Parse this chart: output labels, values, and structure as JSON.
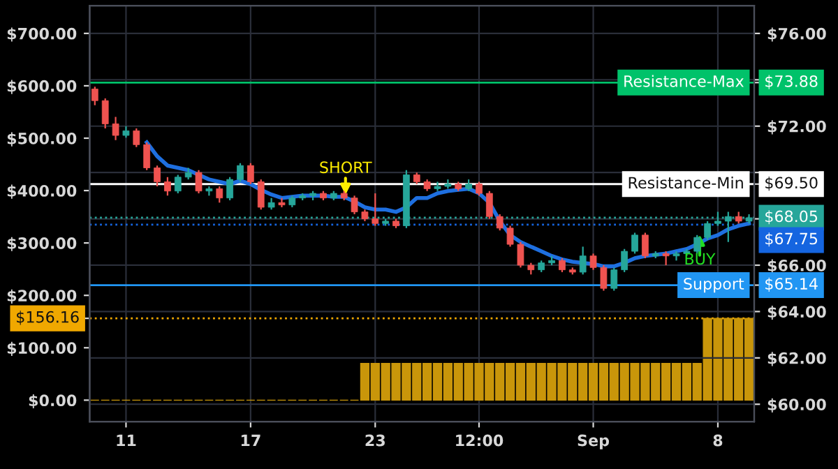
{
  "chart_data": {
    "type": "candlestick",
    "categories": [
      null,
      null,
      null,
      "11",
      null,
      null,
      null,
      null,
      null,
      null,
      null,
      null,
      null,
      null,
      null,
      "17",
      null,
      null,
      null,
      null,
      null,
      null,
      null,
      null,
      null,
      null,
      null,
      "23",
      null,
      null,
      null,
      null,
      null,
      null,
      null,
      null,
      null,
      "12:00",
      null,
      null,
      null,
      null,
      null,
      null,
      null,
      null,
      null,
      null,
      "Sep",
      null,
      null,
      null,
      null,
      null,
      null,
      null,
      null,
      null,
      null,
      null,
      "8",
      null,
      null,
      null
    ],
    "ylim": [
      -41,
      753
    ],
    "yticks": [
      {
        "value": 0,
        "label": "$0.00"
      },
      {
        "value": 100,
        "label": "$100.00"
      },
      {
        "value": 156.16,
        "label": "$156.16"
      },
      {
        "value": 200,
        "label": "$200.00"
      },
      {
        "value": 300,
        "label": "$300.00"
      },
      {
        "value": 400,
        "label": "$400.00"
      },
      {
        "value": 500,
        "label": "$500.00"
      },
      {
        "value": 600,
        "label": "$600.00"
      },
      {
        "value": 700,
        "label": "$700.00"
      }
    ],
    "y2lim": [
      59.25,
      77.2
    ],
    "y2ticks": [
      {
        "value": 60,
        "label": "$60.00"
      },
      {
        "value": 62,
        "label": "$62.00"
      },
      {
        "value": 64,
        "label": "$64.00"
      },
      {
        "value": 65.14,
        "label": "$65.14"
      },
      {
        "value": 66,
        "label": "$66.00"
      },
      {
        "value": 68,
        "label": null
      },
      {
        "value": 69.5,
        "label": "$69.50"
      },
      {
        "value": 70,
        "label": null
      },
      {
        "value": 72,
        "label": "$72.00"
      },
      {
        "value": 73.88,
        "label": "$73.88"
      },
      {
        "value": 74,
        "label": null
      },
      {
        "value": 76,
        "label": "$76.00"
      }
    ],
    "grid": true,
    "ref_lines": [
      {
        "axis": "y2",
        "value": 73.88,
        "label": "Resistance-Max",
        "color": "#00c26a",
        "line_style": "solid"
      },
      {
        "axis": "y2",
        "value": 69.5,
        "label": "Resistance-Min",
        "color": "#ffffff",
        "line_style": "solid"
      },
      {
        "axis": "y2",
        "value": 68.05,
        "label": "$68.05",
        "color": "#26a69a",
        "line_style": "dotted"
      },
      {
        "axis": "y2",
        "value": 67.75,
        "label": "$67.75",
        "color": "#1565e0",
        "line_style": "dotted"
      },
      {
        "axis": "y2",
        "value": 65.14,
        "label": "Support",
        "color": "#2196f3",
        "line_style": "solid"
      },
      {
        "axis": "y",
        "value": 156.16,
        "label": null,
        "color": "#f0a800",
        "line_style": "dotted"
      }
    ],
    "annotations": [
      "SHORT",
      "BUY"
    ],
    "series": [
      {
        "type": "bar",
        "axis": "y",
        "color": "#c9960a",
        "values": [
          0,
          0,
          0,
          0,
          0,
          0,
          0,
          0,
          0,
          0,
          0,
          0,
          0,
          0,
          0,
          0,
          0,
          0,
          0,
          0,
          0,
          0,
          0,
          0,
          0,
          0,
          70,
          70,
          70,
          70,
          70,
          70,
          70,
          70,
          70,
          70,
          70,
          70,
          70,
          70,
          70,
          70,
          70,
          70,
          70,
          70,
          70,
          70,
          70,
          70,
          70,
          70,
          70,
          70,
          70,
          70,
          70,
          70,
          70,
          156.16,
          156.16,
          156.16,
          156.16,
          156.16
        ]
      },
      {
        "type": "line",
        "axis": "y2",
        "color": "#1e6fe0",
        "values": [
          null,
          null,
          null,
          null,
          null,
          71.3,
          70.7,
          70.3,
          70.2,
          70.1,
          69.9,
          69.7,
          69.6,
          69.5,
          69.65,
          69.5,
          69.25,
          69.05,
          68.9,
          68.95,
          69.0,
          69.0,
          69.0,
          68.95,
          68.95,
          68.75,
          68.5,
          68.4,
          68.4,
          68.3,
          68.5,
          68.9,
          68.9,
          69.1,
          69.2,
          69.25,
          69.3,
          69.1,
          68.7,
          67.9,
          67.3,
          67.0,
          66.8,
          66.6,
          66.4,
          66.25,
          66.15,
          66.1,
          66.05,
          65.95,
          65.95,
          66.1,
          66.3,
          66.4,
          66.45,
          66.5,
          66.6,
          66.7,
          66.9,
          67.15,
          67.3,
          67.55,
          67.7,
          67.8
        ]
      },
      {
        "axis": "y2",
        "ohlc": [
          [
            73.6,
            73.7,
            72.9,
            73.1
          ],
          [
            73.1,
            73.2,
            71.9,
            72.1
          ],
          [
            72.1,
            72.4,
            71.4,
            71.6
          ],
          [
            71.6,
            72.0,
            71.5,
            71.8
          ],
          [
            71.8,
            71.9,
            71.1,
            71.2
          ],
          [
            71.2,
            71.3,
            70.1,
            70.2
          ],
          [
            70.2,
            70.3,
            69.4,
            69.6
          ],
          [
            69.6,
            69.8,
            69.0,
            69.2
          ],
          [
            69.2,
            69.9,
            69.1,
            69.8
          ],
          [
            69.8,
            70.2,
            69.7,
            70.0
          ],
          [
            70.0,
            70.1,
            69.1,
            69.2
          ],
          [
            69.2,
            69.4,
            69.0,
            69.3
          ],
          [
            69.3,
            69.4,
            68.7,
            68.9
          ],
          [
            68.9,
            69.8,
            68.8,
            69.7
          ],
          [
            69.7,
            70.4,
            69.6,
            70.3
          ],
          [
            70.3,
            70.4,
            69.5,
            69.6
          ],
          [
            69.6,
            69.7,
            68.4,
            68.5
          ],
          [
            68.5,
            68.9,
            68.4,
            68.7
          ],
          [
            68.7,
            68.9,
            68.5,
            68.6
          ],
          [
            68.6,
            69.0,
            68.5,
            68.9
          ],
          [
            68.9,
            69.1,
            68.8,
            69.0
          ],
          [
            69.0,
            69.2,
            68.8,
            69.1
          ],
          [
            69.1,
            69.2,
            68.8,
            68.9
          ],
          [
            68.9,
            69.2,
            68.8,
            69.1
          ],
          [
            69.1,
            69.2,
            68.8,
            68.9
          ],
          [
            68.9,
            69.0,
            68.2,
            68.3
          ],
          [
            68.3,
            68.4,
            67.9,
            68.0
          ],
          [
            68.0,
            69.1,
            67.7,
            67.8
          ],
          [
            67.8,
            68.0,
            67.7,
            67.9
          ],
          [
            67.9,
            68.0,
            67.6,
            67.7
          ],
          [
            67.7,
            70.1,
            67.6,
            69.9
          ],
          [
            69.9,
            70.0,
            69.5,
            69.6
          ],
          [
            69.6,
            69.7,
            69.2,
            69.3
          ],
          [
            69.3,
            69.6,
            69.2,
            69.4
          ],
          [
            69.4,
            69.7,
            69.3,
            69.5
          ],
          [
            69.5,
            69.6,
            69.2,
            69.3
          ],
          [
            69.3,
            69.7,
            69.2,
            69.5
          ],
          [
            69.5,
            69.6,
            69.0,
            69.1
          ],
          [
            69.1,
            69.2,
            68.0,
            68.1
          ],
          [
            68.1,
            68.2,
            67.5,
            67.6
          ],
          [
            67.6,
            67.7,
            66.8,
            66.9
          ],
          [
            66.9,
            67.0,
            65.9,
            66.0
          ],
          [
            66.0,
            66.1,
            65.6,
            65.8
          ],
          [
            65.8,
            66.2,
            65.7,
            66.1
          ],
          [
            66.1,
            66.4,
            66.0,
            66.2
          ],
          [
            66.2,
            66.3,
            65.7,
            65.8
          ],
          [
            65.8,
            65.9,
            65.6,
            65.7
          ],
          [
            65.7,
            66.8,
            65.6,
            66.4
          ],
          [
            66.4,
            66.5,
            65.8,
            65.9
          ],
          [
            65.9,
            66.0,
            64.9,
            65.0
          ],
          [
            65.0,
            65.9,
            64.9,
            65.8
          ],
          [
            65.8,
            66.7,
            65.7,
            66.6
          ],
          [
            66.6,
            67.4,
            66.5,
            67.3
          ],
          [
            67.3,
            67.4,
            66.3,
            66.4
          ],
          [
            66.4,
            66.6,
            66.3,
            66.5
          ],
          [
            66.5,
            66.6,
            66.0,
            66.4
          ],
          [
            66.4,
            66.6,
            66.2,
            66.5
          ],
          [
            66.5,
            66.7,
            66.4,
            66.6
          ],
          [
            66.6,
            67.3,
            66.5,
            67.2
          ],
          [
            67.2,
            67.9,
            67.1,
            67.8
          ],
          [
            67.8,
            68.3,
            67.7,
            67.9
          ],
          [
            67.9,
            68.3,
            67.0,
            68.1
          ],
          [
            68.1,
            68.3,
            67.8,
            67.9
          ],
          [
            67.9,
            68.2,
            67.8,
            68.05
          ]
        ],
        "colors": [
          "#ef5350",
          "#ef5350",
          "#ef5350",
          "#26a69a",
          "#ef5350",
          "#ef5350",
          "#ef5350",
          "#ef5350",
          "#26a69a",
          "#26a69a",
          "#ef5350",
          "#26a69a",
          "#ef5350",
          "#26a69a",
          "#26a69a",
          "#ef5350",
          "#ef5350",
          "#26a69a",
          "#ef5350",
          "#26a69a",
          "#26a69a",
          "#26a69a",
          "#ef5350",
          "#26a69a",
          "#ef5350",
          "#ef5350",
          "#ef5350",
          "#ef5350",
          "#26a69a",
          "#ef5350",
          "#26a69a",
          "#ef5350",
          "#ef5350",
          "#26a69a",
          "#26a69a",
          "#ef5350",
          "#26a69a",
          "#ef5350",
          "#ef5350",
          "#ef5350",
          "#ef5350",
          "#ef5350",
          "#ef5350",
          "#26a69a",
          "#26a69a",
          "#ef5350",
          "#ef5350",
          "#26a69a",
          "#ef5350",
          "#ef5350",
          "#26a69a",
          "#26a69a",
          "#26a69a",
          "#ef5350",
          "#26a69a",
          "#ef5350",
          "#26a69a",
          "#26a69a",
          "#26a69a",
          "#26a69a",
          "#26a69a",
          "#26a69a",
          "#ef5350",
          "#26a69a"
        ]
      }
    ]
  }
}
